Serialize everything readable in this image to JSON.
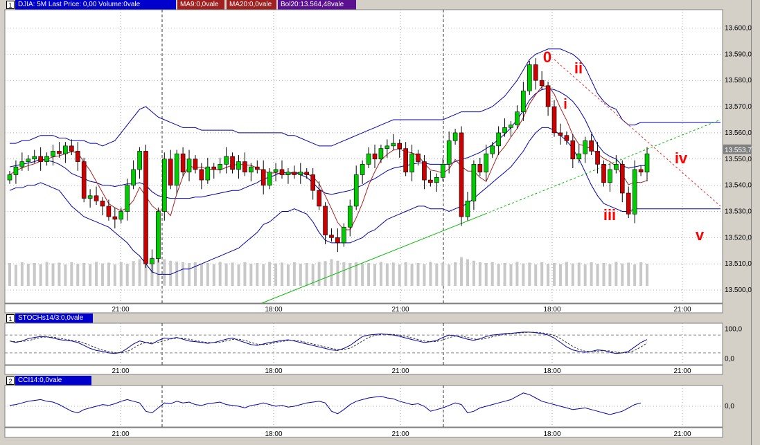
{
  "main_panel": {
    "index": "1",
    "header": "DJIA: 5M Last Price: 0,00 Volume:0vale",
    "ma9": "MA9:0,0vale",
    "ma20": "MA20:0,0vale",
    "bol": "Bol20:13.564,48vale",
    "price_tag": "13.553,7"
  },
  "stoch_panel": {
    "index": "1",
    "header": "STOCHs14/3:0,0vale"
  },
  "cci_panel": {
    "index": "2",
    "header": "CCI14:0,0vale"
  },
  "colors": {
    "bull": "#00cc00",
    "bear": "#cc0000",
    "bollinger": "#0000aa",
    "trendline": "#00bb00",
    "wave_label": "#ff0000"
  },
  "chart_data": [
    {
      "type": "candlestick",
      "yticks": [
        "13.500,0",
        "13.510,0",
        "13.520,0",
        "13.530,0",
        "13.540,0",
        "13.550,0",
        "13.560,0",
        "13.570,0",
        "13.580,0",
        "13.590,0",
        "13.600,0"
      ],
      "ylim": [
        13495,
        13607
      ],
      "xticks": [
        "21:00",
        "18:00",
        "21:00",
        "18:00",
        "21:00"
      ],
      "indicators": [
        "MA9",
        "MA20",
        "Bollinger20",
        "Volume"
      ],
      "wave_labels": [
        "0",
        "i",
        "ii",
        "iii",
        "iv",
        "v"
      ],
      "price_path": [
        13544,
        13547,
        13549,
        13550,
        13551,
        13549,
        13551,
        13553,
        13552,
        13555,
        13553,
        13549,
        13535,
        13536,
        13534,
        13532,
        13528,
        13527,
        13530,
        13540,
        13546,
        13553,
        13510,
        13512,
        13530,
        13550,
        13540,
        13552,
        13545,
        13550,
        13546,
        13542,
        13547,
        13546,
        13548,
        13551,
        13546,
        13549,
        13545,
        13547,
        13546,
        13540,
        13545,
        13546,
        13544,
        13545,
        13544,
        13545,
        13544,
        13538,
        13532,
        13521,
        13520,
        13518,
        13524,
        13532,
        13544,
        13548,
        13552,
        13550,
        13554,
        13555,
        13556,
        13554,
        13545,
        13552,
        13549,
        13542,
        13541,
        13543,
        13548,
        13557,
        13560,
        13528,
        13534,
        13548,
        13545,
        13552,
        13555,
        13560,
        13562,
        13563,
        13568,
        13576,
        13586,
        13580,
        13578,
        13570,
        13560,
        13559,
        13557,
        13550,
        13552,
        13557,
        13553,
        13548,
        13541,
        13546,
        13548,
        13537,
        13529,
        13546,
        13545,
        13552
      ],
      "bb_upper": [
        13556,
        13556,
        13557,
        13557,
        13558,
        13559,
        13559,
        13559,
        13558,
        13558,
        13557,
        13557,
        13557,
        13556,
        13556,
        13555,
        13556,
        13557,
        13560,
        13563,
        13566,
        13569,
        13570,
        13568,
        13566,
        13565,
        13564,
        13563,
        13562,
        13562,
        13562,
        13561,
        13561,
        13561,
        13561,
        13561,
        13561,
        13560,
        13560,
        13560,
        13560,
        13560,
        13560,
        13560,
        13560,
        13559,
        13559,
        13558,
        13557,
        13556,
        13555,
        13555,
        13555,
        13556,
        13557,
        13558,
        13559,
        13560,
        13561,
        13562,
        13563,
        13564,
        13565,
        13565,
        13565,
        13565,
        13565,
        13565,
        13565,
        13565,
        13565,
        13566,
        13567,
        13568,
        13568,
        13568,
        13568,
        13569,
        13570,
        13572,
        13574,
        13577,
        13580,
        13584,
        13588,
        13590,
        13591,
        13592,
        13592,
        13592,
        13591,
        13590,
        13588,
        13585,
        13580,
        13575,
        13572,
        13570,
        13569,
        13565,
        13563,
        13563,
        13564,
        13564
      ],
      "bb_lower": [
        13538,
        13539,
        13539,
        13540,
        13540,
        13541,
        13540,
        13539,
        13538,
        13535,
        13532,
        13530,
        13528,
        13527,
        13526,
        13525,
        13524,
        13522,
        13520,
        13518,
        13515,
        13513,
        13510,
        13507,
        13506,
        13506,
        13506,
        13507,
        13508,
        13508,
        13509,
        13510,
        13511,
        13512,
        13513,
        13514,
        13515,
        13516,
        13518,
        13520,
        13522,
        13525,
        13526,
        13528,
        13530,
        13530,
        13531,
        13530,
        13529,
        13526,
        13522,
        13519,
        13518,
        13518,
        13518,
        13518,
        13519,
        13520,
        13522,
        13523,
        13525,
        13527,
        13528,
        13529,
        13530,
        13531,
        13532,
        13532,
        13531,
        13531,
        13531,
        13530,
        13531,
        13532,
        13533,
        13535,
        13537,
        13539,
        13541,
        13543,
        13545,
        13547,
        13550,
        13553,
        13557,
        13560,
        13562,
        13562,
        13561,
        13559,
        13557,
        13554,
        13550,
        13545,
        13540,
        13536,
        13533,
        13532,
        13531,
        13530,
        13530,
        13531,
        13531,
        13531
      ],
      "volume": [
        0.6,
        0.55,
        0.62,
        0.58,
        0.6,
        0.57,
        0.63,
        0.59,
        0.61,
        0.56,
        0.62,
        0.58,
        0.6,
        0.57,
        0.63,
        0.59,
        0.61,
        0.56,
        0.62,
        0.58,
        0.65,
        0.7,
        0.8,
        0.75,
        0.72,
        0.7,
        0.66,
        0.64,
        0.62,
        0.6,
        0.62,
        0.58,
        0.6,
        0.57,
        0.63,
        0.59,
        0.61,
        0.56,
        0.62,
        0.58,
        0.6,
        0.57,
        0.63,
        0.59,
        0.61,
        0.56,
        0.62,
        0.58,
        0.6,
        0.57,
        0.63,
        0.65,
        0.7,
        0.66,
        0.62,
        0.6,
        0.62,
        0.58,
        0.6,
        0.57,
        0.63,
        0.59,
        0.61,
        0.56,
        0.62,
        0.58,
        0.6,
        0.57,
        0.63,
        0.59,
        0.61,
        0.56,
        0.62,
        0.75,
        0.7,
        0.66,
        0.62,
        0.6,
        0.62,
        0.58,
        0.6,
        0.57,
        0.63,
        0.59,
        0.61,
        0.56,
        0.62,
        0.58,
        0.6,
        0.57,
        0.63,
        0.59,
        0.61,
        0.56,
        0.62,
        0.58,
        0.6,
        0.57,
        0.63,
        0.59,
        0.61,
        0.56,
        0.62,
        0.58
      ]
    },
    {
      "type": "line",
      "yticks": [
        "100,0",
        "0,0"
      ],
      "ylim": [
        -20,
        120
      ],
      "levels": [
        80,
        20
      ],
      "values": [
        60,
        55,
        60,
        68,
        72,
        75,
        74,
        70,
        65,
        62,
        60,
        55,
        45,
        35,
        28,
        25,
        20,
        18,
        22,
        35,
        50,
        60,
        55,
        50,
        62,
        70,
        68,
        72,
        66,
        60,
        58,
        55,
        52,
        55,
        60,
        66,
        70,
        62,
        55,
        48,
        45,
        50,
        55,
        58,
        62,
        64,
        60,
        55,
        50,
        45,
        40,
        35,
        30,
        28,
        35,
        45,
        60,
        75,
        80,
        82,
        84,
        82,
        80,
        76,
        70,
        65,
        60,
        55,
        58,
        62,
        72,
        80,
        78,
        72,
        66,
        62,
        68,
        75,
        80,
        82,
        85,
        86,
        88,
        90,
        90,
        88,
        85,
        80,
        70,
        55,
        40,
        30,
        25,
        22,
        25,
        30,
        28,
        22,
        18,
        20,
        25,
        40,
        55,
        65
      ]
    },
    {
      "type": "line",
      "yticks": [
        "0,0"
      ],
      "ylim": [
        -250,
        250
      ],
      "values": [
        10,
        20,
        40,
        60,
        70,
        80,
        60,
        50,
        20,
        -20,
        -60,
        -80,
        -40,
        -20,
        0,
        20,
        10,
        30,
        60,
        80,
        60,
        40,
        -60,
        -80,
        -20,
        40,
        30,
        60,
        40,
        50,
        20,
        10,
        30,
        40,
        50,
        20,
        10,
        0,
        -20,
        10,
        20,
        40,
        20,
        0,
        10,
        -10,
        0,
        20,
        40,
        50,
        60,
        40,
        -60,
        -90,
        -40,
        20,
        60,
        80,
        100,
        110,
        120,
        100,
        90,
        60,
        40,
        20,
        30,
        0,
        -60,
        -40,
        -20,
        10,
        40,
        20,
        -80,
        -60,
        -20,
        0,
        20,
        40,
        60,
        80,
        120,
        160,
        140,
        100,
        60,
        40,
        20,
        0,
        -20,
        -40,
        -30,
        -20,
        -40,
        -60,
        -80,
        -100,
        -80,
        -60,
        -20,
        20,
        40
      ]
    }
  ]
}
